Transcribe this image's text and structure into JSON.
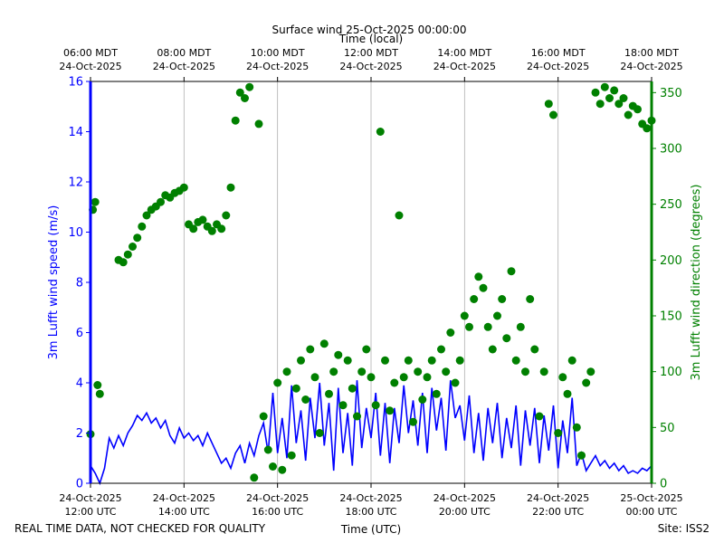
{
  "chart_data": {
    "type": "scatter",
    "title": "Surface wind 25-Oct-2025 00:00:00",
    "top_xlabel": "Time (local)",
    "xlabel": "Time (UTC)",
    "ylabel_left": "3m Lufft wind speed (m/s)",
    "ylabel_right": "3m Lufft wind direction (degrees)",
    "footer_left": "REAL TIME DATA, NOT CHECKED FOR QUALITY",
    "footer_right": "Site: ISS2",
    "x_range_hours_utc": [
      12,
      24
    ],
    "ylim_left": [
      0,
      16
    ],
    "ylim_right": [
      0,
      360
    ],
    "left_yticks": [
      0,
      2,
      4,
      6,
      8,
      10,
      12,
      14,
      16
    ],
    "right_yticks": [
      0,
      50,
      100,
      150,
      200,
      250,
      300,
      350
    ],
    "bottom_ticks": [
      {
        "hour": 12,
        "date": "24-Oct-2025",
        "time": "12:00 UTC"
      },
      {
        "hour": 14,
        "date": "24-Oct-2025",
        "time": "14:00 UTC"
      },
      {
        "hour": 16,
        "date": "24-Oct-2025",
        "time": "16:00 UTC"
      },
      {
        "hour": 18,
        "date": "24-Oct-2025",
        "time": "18:00 UTC"
      },
      {
        "hour": 20,
        "date": "24-Oct-2025",
        "time": "20:00 UTC"
      },
      {
        "hour": 22,
        "date": "24-Oct-2025",
        "time": "22:00 UTC"
      },
      {
        "hour": 24,
        "date": "25-Oct-2025",
        "time": "00:00 UTC"
      }
    ],
    "top_ticks": [
      {
        "hour": 12,
        "time": "06:00 MDT",
        "date": "24-Oct-2025"
      },
      {
        "hour": 14,
        "time": "08:00 MDT",
        "date": "24-Oct-2025"
      },
      {
        "hour": 16,
        "time": "10:00 MDT",
        "date": "24-Oct-2025"
      },
      {
        "hour": 18,
        "time": "12:00 MDT",
        "date": "24-Oct-2025"
      },
      {
        "hour": 20,
        "time": "14:00 MDT",
        "date": "24-Oct-2025"
      },
      {
        "hour": 22,
        "time": "16:00 MDT",
        "date": "24-Oct-2025"
      },
      {
        "hour": 24,
        "time": "18:00 MDT",
        "date": "24-Oct-2025"
      }
    ],
    "colors": {
      "speed": "#0000ff",
      "direction": "#008000",
      "grid": "#b0b0b0"
    },
    "series": [
      {
        "name": "3m Lufft wind speed (m/s)",
        "axis": "left",
        "style": "line",
        "x": [
          12.0,
          12.1,
          12.2,
          12.3,
          12.4,
          12.5,
          12.6,
          12.7,
          12.8,
          12.9,
          13.0,
          13.1,
          13.2,
          13.3,
          13.4,
          13.5,
          13.6,
          13.7,
          13.8,
          13.9,
          14.0,
          14.1,
          14.2,
          14.3,
          14.4,
          14.5,
          14.6,
          14.7,
          14.8,
          14.9,
          15.0,
          15.1,
          15.2,
          15.3,
          15.4,
          15.5,
          15.6,
          15.7,
          15.8,
          15.9,
          16.0,
          16.1,
          16.2,
          16.3,
          16.4,
          16.5,
          16.6,
          16.7,
          16.8,
          16.9,
          17.0,
          17.1,
          17.2,
          17.3,
          17.4,
          17.5,
          17.6,
          17.7,
          17.8,
          17.9,
          18.0,
          18.1,
          18.2,
          18.3,
          18.4,
          18.5,
          18.6,
          18.7,
          18.8,
          18.9,
          19.0,
          19.1,
          19.2,
          19.3,
          19.4,
          19.5,
          19.6,
          19.7,
          19.8,
          19.9,
          20.0,
          20.1,
          20.2,
          20.3,
          20.4,
          20.5,
          20.6,
          20.7,
          20.8,
          20.9,
          21.0,
          21.1,
          21.2,
          21.3,
          21.4,
          21.5,
          21.6,
          21.7,
          21.8,
          21.9,
          22.0,
          22.1,
          22.2,
          22.3,
          22.4,
          22.5,
          22.6,
          22.7,
          22.8,
          22.9,
          23.0,
          23.1,
          23.2,
          23.3,
          23.4,
          23.5,
          23.6,
          23.7,
          23.8,
          23.9,
          24.0
        ],
        "values": [
          0.7,
          0.4,
          0.0,
          0.6,
          1.8,
          1.4,
          1.9,
          1.5,
          2.0,
          2.3,
          2.7,
          2.5,
          2.8,
          2.4,
          2.6,
          2.2,
          2.5,
          1.9,
          1.6,
          2.2,
          1.8,
          2.0,
          1.7,
          1.9,
          1.5,
          2.0,
          1.6,
          1.2,
          0.8,
          1.0,
          0.6,
          1.2,
          1.5,
          0.8,
          1.6,
          1.1,
          1.9,
          2.4,
          1.2,
          3.6,
          1.2,
          2.6,
          1.0,
          3.9,
          1.6,
          2.9,
          0.9,
          3.4,
          1.8,
          4.0,
          1.5,
          3.2,
          0.5,
          3.8,
          1.2,
          2.8,
          0.7,
          4.1,
          1.4,
          3.0,
          1.8,
          3.6,
          1.1,
          3.2,
          0.8,
          3.0,
          1.6,
          3.9,
          2.0,
          3.3,
          1.5,
          3.6,
          1.2,
          3.8,
          2.1,
          3.4,
          1.3,
          4.1,
          2.6,
          3.1,
          1.7,
          3.5,
          1.2,
          2.8,
          0.9,
          3.0,
          1.6,
          3.2,
          1.0,
          2.6,
          1.4,
          3.1,
          0.7,
          2.9,
          1.5,
          3.0,
          0.8,
          2.7,
          1.3,
          3.1,
          0.6,
          2.5,
          1.2,
          3.4,
          0.7,
          1.2,
          0.5,
          0.8,
          1.1,
          0.7,
          0.9,
          0.6,
          0.8,
          0.5,
          0.7,
          0.4,
          0.5,
          0.4,
          0.6,
          0.5,
          0.7
        ]
      },
      {
        "name": "3m Lufft wind direction (degrees)",
        "axis": "right",
        "style": "markers",
        "x": [
          12.0,
          12.05,
          12.1,
          12.15,
          12.2,
          12.6,
          12.7,
          12.8,
          12.9,
          13.0,
          13.1,
          13.2,
          13.3,
          13.4,
          13.5,
          13.6,
          13.7,
          13.8,
          13.9,
          14.0,
          14.1,
          14.2,
          14.3,
          14.4,
          14.5,
          14.6,
          14.7,
          14.8,
          14.9,
          15.0,
          15.1,
          15.2,
          15.3,
          15.4,
          15.5,
          15.6,
          15.7,
          15.8,
          15.9,
          16.0,
          16.1,
          16.2,
          16.3,
          16.4,
          16.5,
          16.6,
          16.7,
          16.8,
          16.9,
          17.0,
          17.1,
          17.2,
          17.3,
          17.4,
          17.5,
          17.6,
          17.7,
          17.8,
          17.9,
          18.0,
          18.1,
          18.2,
          18.3,
          18.4,
          18.5,
          18.6,
          18.7,
          18.8,
          18.9,
          19.0,
          19.1,
          19.2,
          19.3,
          19.4,
          19.5,
          19.6,
          19.7,
          19.8,
          19.9,
          20.0,
          20.1,
          20.2,
          20.3,
          20.4,
          20.5,
          20.6,
          20.7,
          20.8,
          20.9,
          21.0,
          21.1,
          21.2,
          21.3,
          21.4,
          21.5,
          21.6,
          21.7,
          21.8,
          21.9,
          22.0,
          22.1,
          22.2,
          22.3,
          22.4,
          22.5,
          22.6,
          22.7,
          22.8,
          22.9,
          23.0,
          23.1,
          23.2,
          23.3,
          23.4,
          23.5,
          23.6,
          23.7,
          23.8,
          23.9,
          24.0
        ],
        "values": [
          44,
          245,
          252,
          88,
          80,
          200,
          198,
          205,
          212,
          220,
          230,
          240,
          245,
          248,
          252,
          258,
          256,
          260,
          262,
          265,
          232,
          228,
          234,
          236,
          230,
          226,
          232,
          228,
          240,
          265,
          325,
          350,
          345,
          355,
          5,
          322,
          60,
          30,
          15,
          90,
          12,
          100,
          25,
          85,
          110,
          75,
          120,
          95,
          45,
          125,
          80,
          100,
          115,
          70,
          110,
          85,
          60,
          100,
          120,
          95,
          70,
          315,
          110,
          65,
          90,
          240,
          95,
          110,
          55,
          100,
          75,
          95,
          110,
          80,
          120,
          100,
          135,
          90,
          110,
          150,
          140,
          165,
          185,
          175,
          140,
          120,
          150,
          165,
          130,
          190,
          110,
          140,
          100,
          165,
          120,
          60,
          100,
          340,
          330,
          45,
          95,
          80,
          110,
          50,
          25,
          90,
          100,
          350,
          340,
          355,
          345,
          352,
          340,
          345,
          330,
          338,
          335,
          322,
          318,
          325
        ]
      }
    ]
  }
}
